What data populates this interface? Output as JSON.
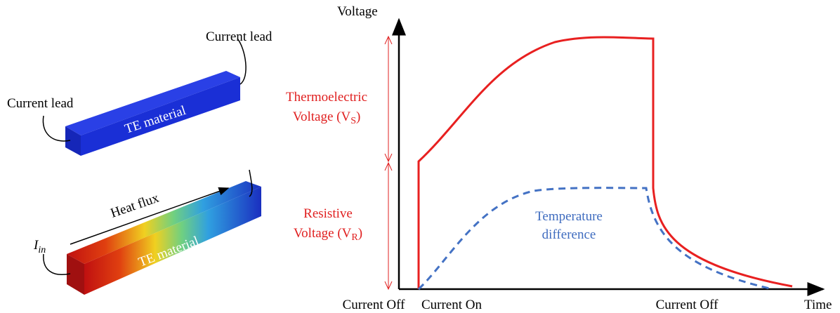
{
  "left_figure": {
    "top_bar": {
      "lead_left": "Current lead",
      "lead_right": "Current lead",
      "material": "TE material"
    },
    "bottom_bar": {
      "current": {
        "symbol": "I",
        "subscript": "in"
      },
      "heat_flux": "Heat flux",
      "material": "TE material"
    }
  },
  "plot": {
    "y_axis": "Voltage",
    "x_axis": "Time",
    "thermoelectric": {
      "line1": "Thermoelectric",
      "prefix": "Voltage (V",
      "sub": "S",
      "suffix": ")"
    },
    "resistive": {
      "line1": "Resistive",
      "prefix": "Voltage (V",
      "sub": "R",
      "suffix": ")"
    },
    "temperature": {
      "line1": "Temperature",
      "line2": "difference"
    },
    "x_labels": [
      "Current Off",
      "Current On",
      "Current Off"
    ]
  }
}
